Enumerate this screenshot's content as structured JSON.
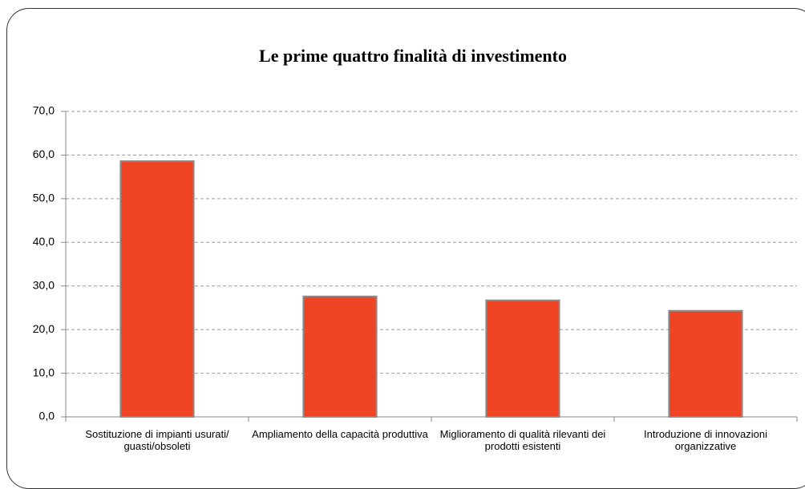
{
  "chart_data": {
    "type": "bar",
    "title": "Le prime quattro finalità di investimento",
    "categories": [
      "Sostituzione di impianti usurati/ guasti/obsoleti",
      "Ampliamento della capacità produttiva",
      "Miglioramento di qualità rilevanti dei prodotti esistenti",
      "Introduzione di innovazioni organizzative"
    ],
    "values": [
      58.6,
      27.6,
      26.7,
      24.3
    ],
    "color": "#ef4423",
    "ylim": [
      0,
      70
    ],
    "yticks": [
      {
        "value": 0,
        "label": "0,0"
      },
      {
        "value": 10,
        "label": "10,0"
      },
      {
        "value": 20,
        "label": "20,0"
      },
      {
        "value": 30,
        "label": "30,0"
      },
      {
        "value": 40,
        "label": "40,0"
      },
      {
        "value": 50,
        "label": "50,0"
      },
      {
        "value": 60,
        "label": "60,0"
      },
      {
        "value": 70,
        "label": "70,0"
      }
    ],
    "grid": true
  }
}
